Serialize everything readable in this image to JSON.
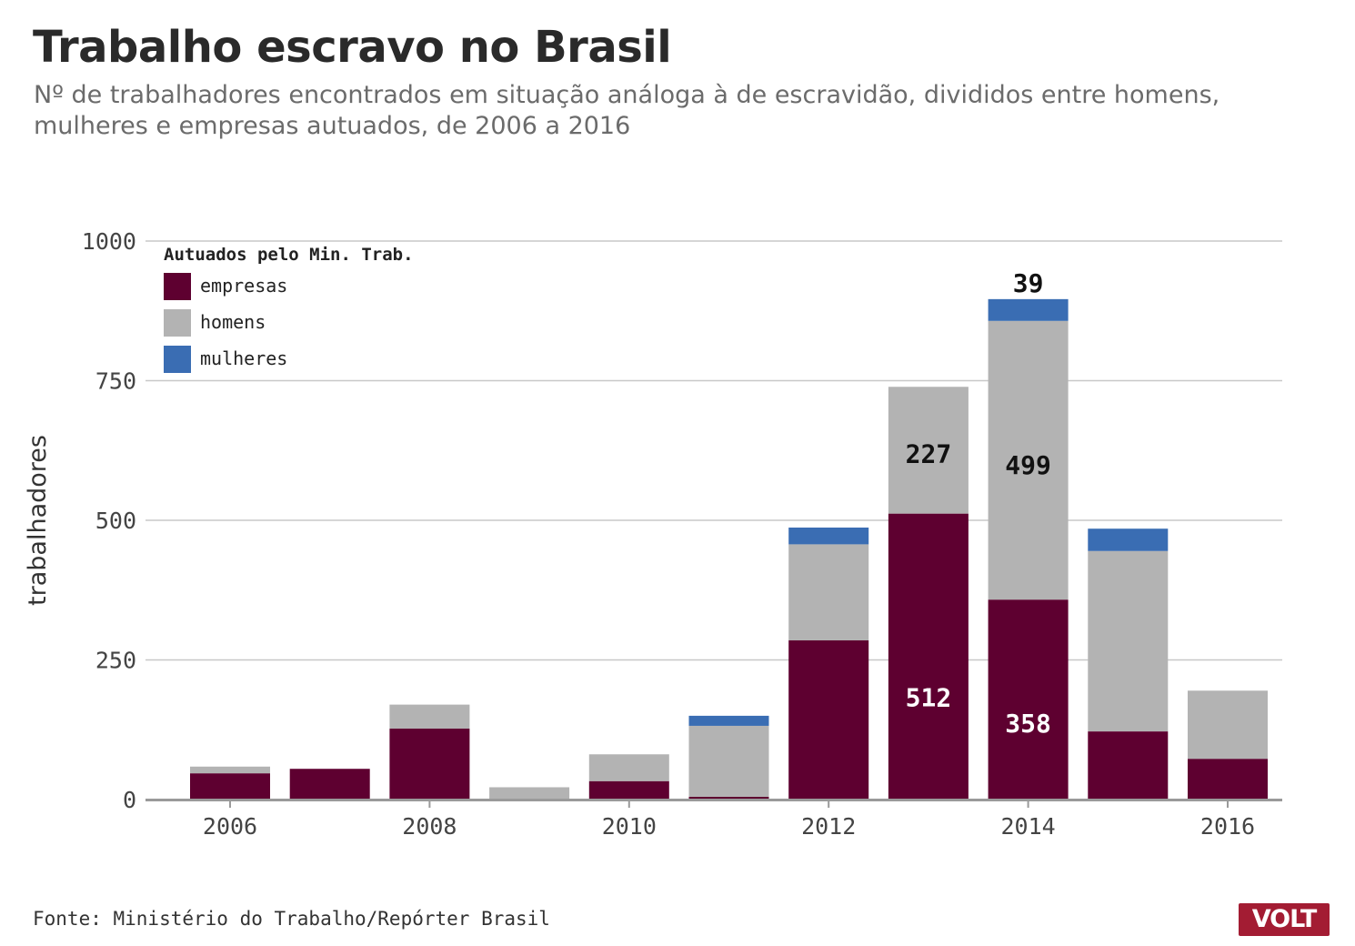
{
  "header": {
    "title": "Trabalho escravo no Brasil",
    "subtitle": "Nº de trabalhadores encontrados em situação análoga à de escravidão, divididos entre homens, mulheres e empresas autuados, de 2006 a 2016"
  },
  "footer": {
    "source": "Fonte: Ministério do Trabalho/Repórter Brasil",
    "logo": "VOLT"
  },
  "chart_data": {
    "type": "bar",
    "stacked": true,
    "title": "Trabalho escravo no Brasil",
    "xlabel": "",
    "ylabel": "trabalhadores",
    "ylim": [
      0,
      1000
    ],
    "yticks": [
      0,
      250,
      500,
      750,
      1000
    ],
    "xticks": [
      2006,
      2008,
      2010,
      2012,
      2014,
      2016
    ],
    "x": [
      2006,
      2007,
      2008,
      2009,
      2010,
      2011,
      2012,
      2013,
      2014,
      2015,
      2016
    ],
    "legend_title": "Autuados pelo Min. Trab.",
    "legend_position": "top-left",
    "grid": true,
    "series": [
      {
        "name": "empresas",
        "color": "#5e0030",
        "values": [
          47,
          55,
          127,
          0,
          33,
          5,
          285,
          512,
          358,
          122,
          73
        ]
      },
      {
        "name": "homens",
        "color": "#b3b3b3",
        "values": [
          12,
          0,
          43,
          22,
          48,
          127,
          172,
          227,
          499,
          323,
          122
        ]
      },
      {
        "name": "mulheres",
        "color": "#3a6db3",
        "values": [
          0,
          0,
          0,
          0,
          0,
          18,
          30,
          0,
          39,
          40,
          0
        ]
      }
    ],
    "annotations": [
      {
        "x": 2013,
        "series": "empresas",
        "label": "512"
      },
      {
        "x": 2013,
        "series": "homens",
        "label": "227"
      },
      {
        "x": 2014,
        "series": "empresas",
        "label": "358"
      },
      {
        "x": 2014,
        "series": "homens",
        "label": "499"
      },
      {
        "x": 2014,
        "series": "mulheres",
        "label": "39"
      }
    ]
  }
}
